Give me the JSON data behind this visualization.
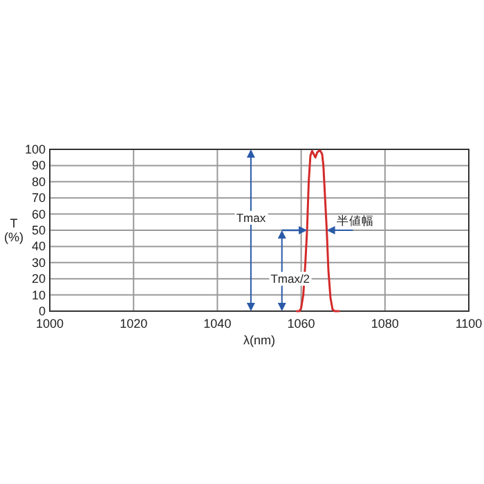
{
  "chart_data": {
    "type": "line",
    "xlabel": "λ(nm)",
    "ylabel": "T\n(%)",
    "x": [
      1059,
      1059.6,
      1060,
      1060.5,
      1061,
      1061.4,
      1061.8,
      1062.2,
      1062.6,
      1063,
      1063.4,
      1063.8,
      1064.2,
      1064.6,
      1065,
      1065.3,
      1065.7,
      1066.1,
      1066.5,
      1067,
      1067.5,
      1068,
      1069
    ],
    "series": [
      {
        "color": "#d42a2a",
        "values": [
          0,
          0,
          2,
          10,
          30,
          50,
          80,
          96,
          99,
          97,
          95,
          98,
          99,
          99,
          97,
          90,
          70,
          50,
          25,
          8,
          1,
          0,
          0
        ]
      }
    ],
    "xlim": [
      1000,
      1100
    ],
    "xticks": [
      1000,
      1020,
      1040,
      1060,
      1080,
      1100
    ],
    "ylim": [
      0,
      100
    ],
    "yticks": [
      0,
      10,
      20,
      30,
      40,
      50,
      60,
      70,
      80,
      90,
      100
    ],
    "grid": true,
    "marker": "none",
    "line_style": "solid",
    "ref_lines": [
      {
        "axis": "x",
        "value": 1048,
        "label": "Tmax",
        "color": "#2a5aa8"
      },
      {
        "axis": "x",
        "value": 1055.4,
        "label": "Tmax/2",
        "color": "#2a5aa8"
      }
    ],
    "annotations": [
      "半値幅"
    ]
  }
}
